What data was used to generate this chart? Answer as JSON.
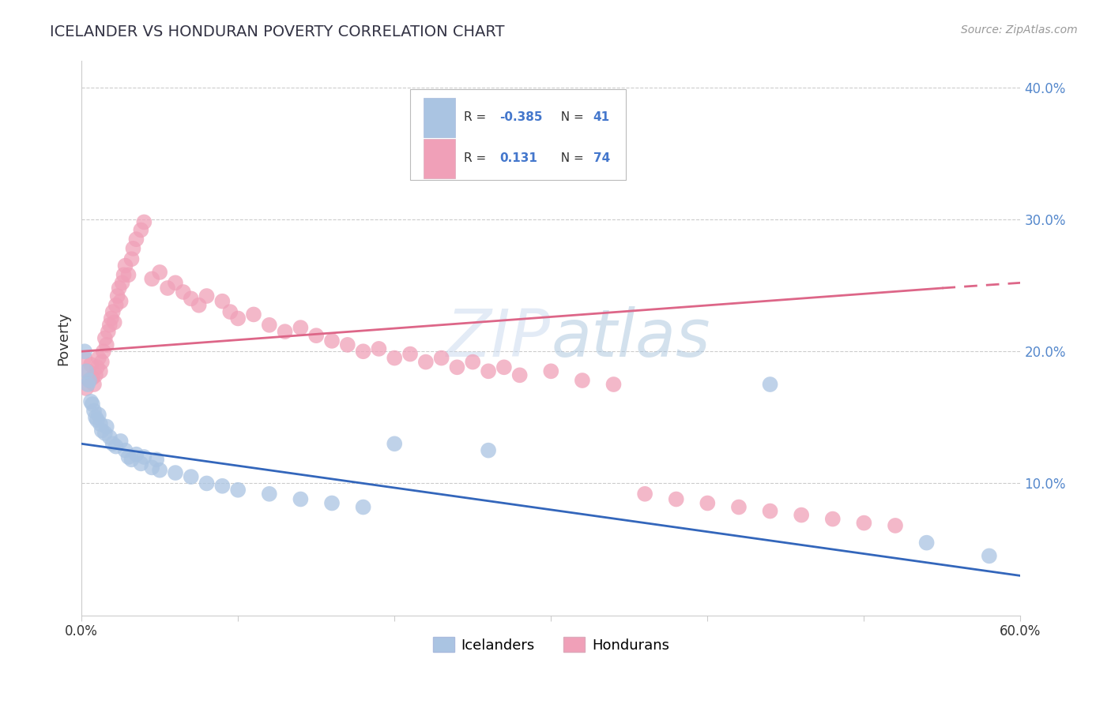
{
  "title": "ICELANDER VS HONDURAN POVERTY CORRELATION CHART",
  "source": "Source: ZipAtlas.com",
  "ylabel": "Poverty",
  "xlim": [
    0.0,
    0.6
  ],
  "ylim": [
    0.0,
    0.42
  ],
  "yticks": [
    0.1,
    0.2,
    0.3,
    0.4
  ],
  "ytick_labels": [
    "10.0%",
    "20.0%",
    "30.0%",
    "40.0%"
  ],
  "icelander_color": "#aac4e2",
  "honduran_color": "#f0a0b8",
  "icelander_line_color": "#3366bb",
  "honduran_line_color": "#dd6688",
  "background_color": "#ffffff",
  "grid_color": "#cccccc",
  "icelander_R": "-0.385",
  "icelander_N": "41",
  "honduran_R": "0.131",
  "honduran_N": "74",
  "icelander_points": [
    [
      0.002,
      0.2
    ],
    [
      0.003,
      0.185
    ],
    [
      0.004,
      0.175
    ],
    [
      0.005,
      0.178
    ],
    [
      0.006,
      0.162
    ],
    [
      0.007,
      0.16
    ],
    [
      0.008,
      0.155
    ],
    [
      0.009,
      0.15
    ],
    [
      0.01,
      0.148
    ],
    [
      0.011,
      0.152
    ],
    [
      0.012,
      0.145
    ],
    [
      0.013,
      0.14
    ],
    [
      0.015,
      0.138
    ],
    [
      0.016,
      0.143
    ],
    [
      0.018,
      0.135
    ],
    [
      0.02,
      0.13
    ],
    [
      0.022,
      0.128
    ],
    [
      0.025,
      0.132
    ],
    [
      0.028,
      0.125
    ],
    [
      0.03,
      0.12
    ],
    [
      0.032,
      0.118
    ],
    [
      0.035,
      0.122
    ],
    [
      0.038,
      0.115
    ],
    [
      0.04,
      0.12
    ],
    [
      0.045,
      0.112
    ],
    [
      0.048,
      0.118
    ],
    [
      0.05,
      0.11
    ],
    [
      0.06,
      0.108
    ],
    [
      0.07,
      0.105
    ],
    [
      0.08,
      0.1
    ],
    [
      0.09,
      0.098
    ],
    [
      0.1,
      0.095
    ],
    [
      0.12,
      0.092
    ],
    [
      0.14,
      0.088
    ],
    [
      0.16,
      0.085
    ],
    [
      0.18,
      0.082
    ],
    [
      0.2,
      0.13
    ],
    [
      0.26,
      0.125
    ],
    [
      0.44,
      0.175
    ],
    [
      0.54,
      0.055
    ],
    [
      0.58,
      0.045
    ]
  ],
  "honduran_points": [
    [
      0.002,
      0.195
    ],
    [
      0.003,
      0.172
    ],
    [
      0.004,
      0.185
    ],
    [
      0.005,
      0.178
    ],
    [
      0.006,
      0.19
    ],
    [
      0.007,
      0.18
    ],
    [
      0.008,
      0.175
    ],
    [
      0.009,
      0.182
    ],
    [
      0.01,
      0.188
    ],
    [
      0.011,
      0.195
    ],
    [
      0.012,
      0.185
    ],
    [
      0.013,
      0.192
    ],
    [
      0.014,
      0.2
    ],
    [
      0.015,
      0.21
    ],
    [
      0.016,
      0.205
    ],
    [
      0.017,
      0.215
    ],
    [
      0.018,
      0.22
    ],
    [
      0.019,
      0.225
    ],
    [
      0.02,
      0.23
    ],
    [
      0.021,
      0.222
    ],
    [
      0.022,
      0.235
    ],
    [
      0.023,
      0.242
    ],
    [
      0.024,
      0.248
    ],
    [
      0.025,
      0.238
    ],
    [
      0.026,
      0.252
    ],
    [
      0.027,
      0.258
    ],
    [
      0.028,
      0.265
    ],
    [
      0.03,
      0.258
    ],
    [
      0.032,
      0.27
    ],
    [
      0.033,
      0.278
    ],
    [
      0.035,
      0.285
    ],
    [
      0.038,
      0.292
    ],
    [
      0.04,
      0.298
    ],
    [
      0.045,
      0.255
    ],
    [
      0.05,
      0.26
    ],
    [
      0.055,
      0.248
    ],
    [
      0.06,
      0.252
    ],
    [
      0.065,
      0.245
    ],
    [
      0.07,
      0.24
    ],
    [
      0.075,
      0.235
    ],
    [
      0.08,
      0.242
    ],
    [
      0.09,
      0.238
    ],
    [
      0.095,
      0.23
    ],
    [
      0.1,
      0.225
    ],
    [
      0.11,
      0.228
    ],
    [
      0.12,
      0.22
    ],
    [
      0.13,
      0.215
    ],
    [
      0.14,
      0.218
    ],
    [
      0.15,
      0.212
    ],
    [
      0.16,
      0.208
    ],
    [
      0.17,
      0.205
    ],
    [
      0.18,
      0.2
    ],
    [
      0.19,
      0.202
    ],
    [
      0.2,
      0.195
    ],
    [
      0.21,
      0.198
    ],
    [
      0.22,
      0.192
    ],
    [
      0.23,
      0.195
    ],
    [
      0.24,
      0.188
    ],
    [
      0.25,
      0.192
    ],
    [
      0.26,
      0.185
    ],
    [
      0.27,
      0.188
    ],
    [
      0.28,
      0.182
    ],
    [
      0.3,
      0.185
    ],
    [
      0.32,
      0.178
    ],
    [
      0.34,
      0.175
    ],
    [
      0.36,
      0.092
    ],
    [
      0.38,
      0.088
    ],
    [
      0.4,
      0.085
    ],
    [
      0.42,
      0.082
    ],
    [
      0.44,
      0.079
    ],
    [
      0.46,
      0.076
    ],
    [
      0.48,
      0.073
    ],
    [
      0.5,
      0.07
    ],
    [
      0.52,
      0.068
    ]
  ]
}
